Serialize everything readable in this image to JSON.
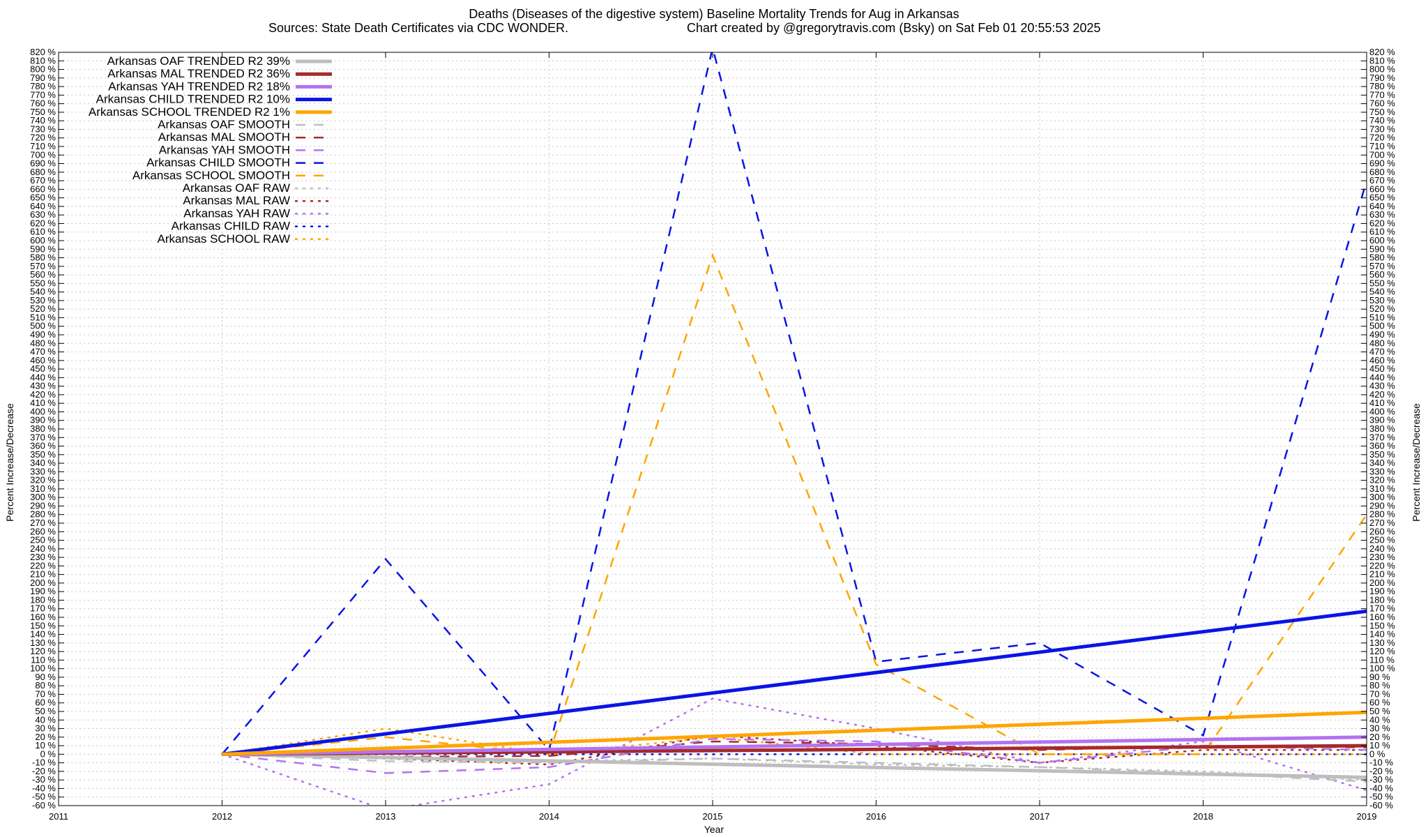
{
  "chart_data": {
    "type": "line",
    "title": "Deaths (Diseases of the digestive system)  Baseline Mortality Trends for Aug in Arkansas",
    "subtitle_left": "Sources: State Death Certificates via CDC WONDER.",
    "subtitle_right": "Chart created by @gregorytravis.com (Bsky) on Sat Feb 01 20:55:53 2025",
    "xlabel": "Year",
    "ylabel": "Percent Increase/Decrease",
    "ylabel_right": "Percent Increase/Decrease",
    "xlim": [
      2011,
      2019
    ],
    "ylim": [
      -60,
      820
    ],
    "x_ticks": [
      "2011",
      "2012",
      "2013",
      "2014",
      "2015",
      "2016",
      "2017",
      "2018",
      "2019"
    ],
    "y_tick_step": 10,
    "y_tick_suffix": " %",
    "grid": true,
    "legend_position": "top-left",
    "colors": {
      "oaf": "#bebebe",
      "mal": "#a52a2a",
      "yah": "#b273f0",
      "child": "#0a14e6",
      "school": "#ffa500"
    },
    "series": [
      {
        "name": "Arkansas OAF TRENDED R2  39%",
        "group": "oaf",
        "style": "trend",
        "x": [
          2012,
          2019
        ],
        "y": [
          0,
          -27
        ]
      },
      {
        "name": "Arkansas MAL TRENDED R2  36%",
        "group": "mal",
        "style": "trend",
        "x": [
          2012,
          2019
        ],
        "y": [
          0,
          10
        ]
      },
      {
        "name": "Arkansas YAH TRENDED R2  18%",
        "group": "yah",
        "style": "trend",
        "x": [
          2012,
          2019
        ],
        "y": [
          0,
          20
        ]
      },
      {
        "name": "Arkansas CHILD TRENDED R2  10%",
        "group": "child",
        "style": "trend",
        "x": [
          2012,
          2019
        ],
        "y": [
          0,
          167
        ]
      },
      {
        "name": "Arkansas SCHOOL TRENDED R2   1%",
        "group": "school",
        "style": "trend",
        "x": [
          2012,
          2019
        ],
        "y": [
          0,
          49
        ]
      },
      {
        "name": "Arkansas OAF SMOOTH",
        "group": "oaf",
        "style": "smooth",
        "x": [
          2012,
          2013,
          2014,
          2015,
          2016,
          2017,
          2018,
          2019
        ],
        "y": [
          0,
          -8,
          -10,
          -5,
          -10,
          -15,
          -22,
          -32
        ]
      },
      {
        "name": "Arkansas MAL SMOOTH",
        "group": "mal",
        "style": "smooth",
        "x": [
          2012,
          2013,
          2014,
          2015,
          2016,
          2017,
          2018,
          2019
        ],
        "y": [
          0,
          -3,
          -2,
          15,
          12,
          5,
          10,
          8
        ]
      },
      {
        "name": "Arkansas YAH SMOOTH",
        "group": "yah",
        "style": "smooth",
        "x": [
          2012,
          2013,
          2014,
          2015,
          2016,
          2017,
          2018,
          2019
        ],
        "y": [
          0,
          -22,
          -15,
          18,
          15,
          -10,
          10,
          5
        ]
      },
      {
        "name": "Arkansas CHILD SMOOTH",
        "group": "child",
        "style": "smooth",
        "x": [
          2012,
          2013,
          2014,
          2015,
          2016,
          2017,
          2018,
          2019
        ],
        "y": [
          0,
          228,
          5,
          825,
          108,
          130,
          22,
          670
        ]
      },
      {
        "name": "Arkansas SCHOOL SMOOTH",
        "group": "school",
        "style": "smooth",
        "x": [
          2012,
          2013,
          2014,
          2015,
          2016,
          2017,
          2018,
          2019
        ],
        "y": [
          0,
          20,
          0,
          583,
          105,
          0,
          0,
          280
        ]
      },
      {
        "name": "Arkansas OAF RAW",
        "group": "oaf",
        "style": "raw",
        "x": [
          2012,
          2013,
          2014,
          2015,
          2016,
          2017,
          2018,
          2019
        ],
        "y": [
          0,
          -5,
          -8,
          -5,
          -12,
          -15,
          -20,
          -30
        ]
      },
      {
        "name": "Arkansas MAL RAW",
        "group": "mal",
        "style": "raw",
        "x": [
          2012,
          2013,
          2014,
          2015,
          2016,
          2017,
          2018,
          2019
        ],
        "y": [
          0,
          -5,
          -12,
          22,
          10,
          -10,
          5,
          5
        ]
      },
      {
        "name": "Arkansas YAH RAW",
        "group": "yah",
        "style": "raw",
        "x": [
          2012,
          2013,
          2014,
          2015,
          2016,
          2017,
          2018,
          2019
        ],
        "y": [
          0,
          -65,
          -35,
          65,
          30,
          -10,
          15,
          -42
        ]
      },
      {
        "name": "Arkansas CHILD RAW",
        "group": "child",
        "style": "raw",
        "x": [
          2012,
          2013,
          2014,
          2015,
          2016,
          2017,
          2018,
          2019
        ],
        "y": [
          0,
          0,
          0,
          0,
          0,
          0,
          0,
          0
        ]
      },
      {
        "name": "Arkansas SCHOOL RAW",
        "group": "school",
        "style": "raw",
        "x": [
          2012,
          2013,
          2014,
          2015,
          2016,
          2017,
          2018,
          2019
        ],
        "y": [
          0,
          30,
          0,
          20,
          0,
          0,
          0,
          0
        ]
      }
    ]
  }
}
